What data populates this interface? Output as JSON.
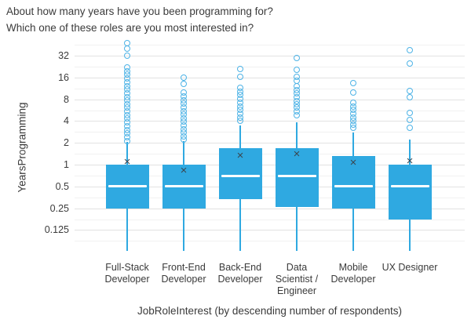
{
  "title": {
    "line1": "About how many years have you been programming for?",
    "line2": "Which one of these roles are you most interested in?"
  },
  "chart_data": {
    "type": "box",
    "title": "About how many years have you been programming for? Which one of these roles are you most interested in?",
    "xlabel": "JobRoleInterest (by descending number of respondents)",
    "ylabel": "YearsProgramming",
    "y_scale": "log2",
    "y_ticks": [
      32,
      16,
      8,
      4,
      2,
      1,
      0.5,
      0.25,
      0.125
    ],
    "ylim": [
      0.05,
      56
    ],
    "grid": true,
    "legend": false,
    "categories": [
      "Full-Stack Developer",
      "Front-End Developer",
      "Back-End Developer",
      "Data Scientist / Engineer",
      "Mobile Developer",
      "UX Designer"
    ],
    "category_label_lines": [
      [
        "Full-Stack",
        "Developer"
      ],
      [
        "Front-End",
        "Developer"
      ],
      [
        "Back-End",
        "Developer"
      ],
      [
        "Data",
        "Scientist /",
        "Engineer"
      ],
      [
        "Mobile",
        "Developer"
      ],
      [
        "UX Designer"
      ]
    ],
    "boxes": [
      {
        "category": "Full-Stack Developer",
        "q1": 0.25,
        "median": 0.5,
        "q3": 1.0,
        "mean": 1.07,
        "whisker_low": 0.064,
        "whisker_high": 2.05,
        "outliers": [
          48,
          40,
          32,
          22,
          19.6,
          17.4,
          15.5,
          13.8,
          12.2,
          10.9,
          9.7,
          8.6,
          7.7,
          6.8,
          6.1,
          5.4,
          4.8,
          4.3,
          3.8,
          3.4,
          3.0,
          2.7,
          2.4,
          2.1
        ]
      },
      {
        "category": "Front-End Developer",
        "q1": 0.25,
        "median": 0.5,
        "q3": 1.0,
        "mean": 0.82,
        "whisker_low": 0.064,
        "whisker_high": 2.1,
        "outliers": [
          15.8,
          13,
          9.9,
          8.8,
          7.8,
          7.0,
          6.2,
          5.5,
          4.9,
          4.4,
          3.9,
          3.5,
          3.1,
          2.75,
          2.45,
          2.2
        ]
      },
      {
        "category": "Back-End Developer",
        "q1": 0.33,
        "median": 0.7,
        "q3": 1.7,
        "mean": 1.33,
        "whisker_low": 0.064,
        "whisker_high": 3.5,
        "outliers": [
          21,
          16.5,
          11.5,
          10.2,
          9.1,
          8.1,
          7.2,
          6.4,
          5.7,
          5.1,
          4.5,
          4.0
        ]
      },
      {
        "category": "Data Scientist / Engineer",
        "q1": 0.26,
        "median": 0.7,
        "q3": 1.7,
        "mean": 1.38,
        "whisker_low": 0.064,
        "whisker_high": 3.8,
        "outliers": [
          30,
          20.5,
          16.5,
          14.5,
          12.1,
          10.8,
          9.6,
          8.6,
          7.6,
          6.8,
          6.1,
          5.4,
          4.8
        ]
      },
      {
        "category": "Mobile Developer",
        "q1": 0.25,
        "median": 0.5,
        "q3": 1.3,
        "mean": 1.05,
        "whisker_low": 0.064,
        "whisker_high": 2.75,
        "outliers": [
          13.5,
          9.8,
          7.2,
          6.4,
          5.7,
          5.1,
          4.5,
          4.0,
          3.6,
          3.2
        ]
      },
      {
        "category": "UX Designer",
        "q1": 0.175,
        "median": 0.5,
        "q3": 1.0,
        "mean": 1.1,
        "whisker_low": 0.064,
        "whisker_high": 2.2,
        "outliers": [
          38,
          25,
          10.4,
          8.5,
          5.2,
          4.1,
          3.2
        ]
      }
    ],
    "colors": {
      "box_fill": "#2fa9e1",
      "whisker": "#2fa9e1",
      "median_line": "#ffffff",
      "outlier_stroke": "#4db3e6",
      "mean_marker": "#3a4750",
      "grid_major": "#e2e2e2",
      "grid_minor": "#f1f1f1",
      "text": "#3b3b3b"
    },
    "mean_marker_glyph": "×"
  }
}
